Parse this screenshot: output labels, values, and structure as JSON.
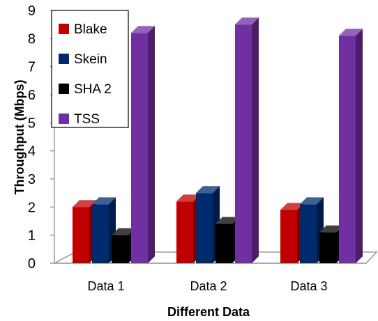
{
  "chart_data": {
    "type": "bar",
    "title": "",
    "xlabel": "Different Data",
    "ylabel": "Throughput (Mbps)",
    "categories": [
      "Data 1",
      "Data 2",
      "Data 3"
    ],
    "ylim": [
      0,
      9
    ],
    "yticks": [
      0,
      1,
      2,
      3,
      4,
      5,
      6,
      7,
      8,
      9
    ],
    "grid": false,
    "legend_position": "top-left",
    "style": "3d-clustered-column",
    "series": [
      {
        "name": "Blake",
        "color": "#C00000",
        "values": [
          2.0,
          2.2,
          1.9
        ]
      },
      {
        "name": "Skein",
        "color": "#002A6E",
        "values": [
          2.1,
          2.5,
          2.1
        ]
      },
      {
        "name": "SHA 2",
        "color": "#000000",
        "values": [
          1.0,
          1.4,
          1.1
        ]
      },
      {
        "name": "TSS",
        "color": "#7030A0",
        "values": [
          8.2,
          8.5,
          8.1
        ]
      }
    ]
  }
}
